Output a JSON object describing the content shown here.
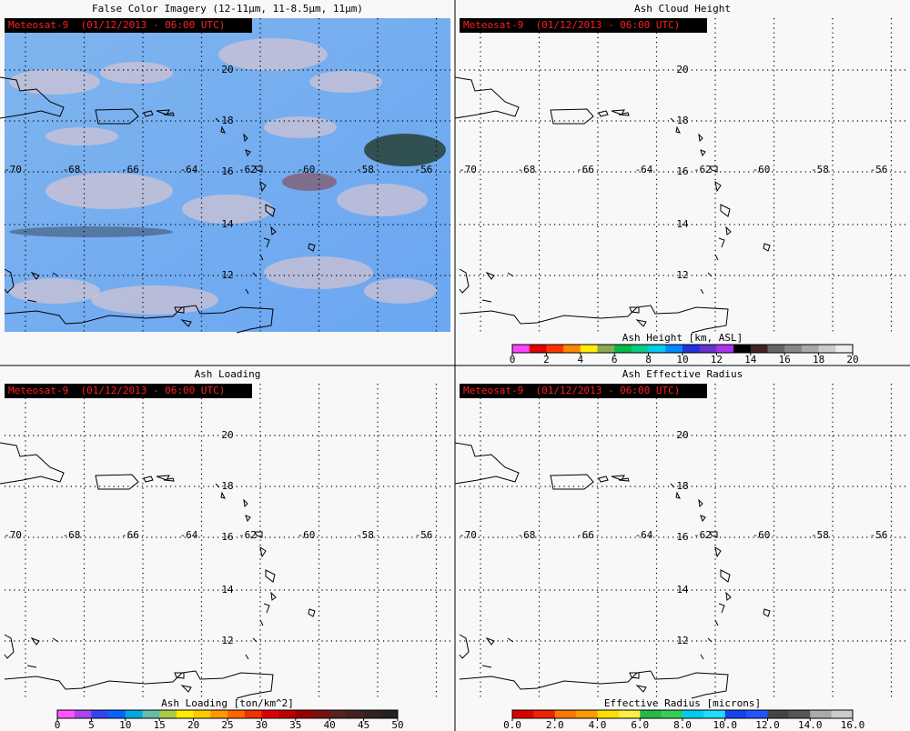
{
  "panels": [
    {
      "title": "False Color Imagery (12-11μm, 11-8.5μm, 11μm)",
      "timestamp": "Meteosat-9  (01/12/2013 - 06:00 UTC)",
      "imagery": true,
      "lat_labels": [
        "20",
        "18",
        "16",
        "14",
        "12"
      ],
      "lon_labels": [
        "-70",
        "-68",
        "-66",
        "-64",
        "-62",
        "-60",
        "-58",
        "-56"
      ]
    },
    {
      "title": "Ash Cloud Height",
      "timestamp": "Meteosat-9  (01/12/2013 - 06:00 UTC)",
      "lat_labels": [
        "20",
        "18",
        "16",
        "14",
        "12"
      ],
      "lon_labels": [
        "-70",
        "-68",
        "-66",
        "-64",
        "-62",
        "-60",
        "-58",
        "-56"
      ],
      "colorbar": {
        "label": "Ash Height [km, ASL]",
        "ticks": [
          "0",
          "2",
          "4",
          "6",
          "8",
          "10",
          "12",
          "14",
          "16",
          "18",
          "20"
        ],
        "colors": [
          "#ff44ff",
          "#e00000",
          "#ff3300",
          "#ff8800",
          "#ffee00",
          "#88aa55",
          "#00bb44",
          "#00cc88",
          "#00ccee",
          "#0088ff",
          "#2233dd",
          "#6633cc",
          "#aa33ee",
          "#000000",
          "#442222",
          "#666666",
          "#888888",
          "#aaaaaa",
          "#cccccc",
          "#eeeeee"
        ]
      }
    },
    {
      "title": "Ash Loading",
      "timestamp": "Meteosat-9  (01/12/2013 - 06:00 UTC)",
      "lat_labels": [
        "20",
        "18",
        "16",
        "14",
        "12"
      ],
      "lon_labels": [
        "-70",
        "-68",
        "-66",
        "-64",
        "-62",
        "-60",
        "-58",
        "-56"
      ],
      "colorbar": {
        "label": "Ash Loading [ton/km^2]",
        "ticks": [
          "0",
          "5",
          "10",
          "15",
          "20",
          "25",
          "30",
          "35",
          "40",
          "45",
          "50"
        ],
        "colors": [
          "#ff55ff",
          "#aa44ee",
          "#3344ee",
          "#0066ff",
          "#00aadd",
          "#66bbaa",
          "#aacc44",
          "#ffee00",
          "#ffcc00",
          "#ff9900",
          "#ff6600",
          "#ee3300",
          "#dd0000",
          "#bb0000",
          "#990000",
          "#771111",
          "#552222",
          "#442222",
          "#332222",
          "#222222"
        ]
      }
    },
    {
      "title": "Ash Effective Radius",
      "timestamp": "Meteosat-9  (01/12/2013 - 06:00 UTC)",
      "lat_labels": [
        "20",
        "18",
        "16",
        "14",
        "12"
      ],
      "lon_labels": [
        "-70",
        "-68",
        "-66",
        "-64",
        "-62",
        "-60",
        "-58",
        "-56"
      ],
      "colorbar": {
        "label": "Effective Radius [microns]",
        "ticks": [
          "0.0",
          "2.0",
          "4.0",
          "6.0",
          "8.0",
          "10.0",
          "12.0",
          "14.0",
          "16.0"
        ],
        "colors": [
          "#dd0000",
          "#ee2200",
          "#ff7700",
          "#ff9900",
          "#ffdd00",
          "#ffee44",
          "#22bb44",
          "#33cc55",
          "#00ccee",
          "#22ddff",
          "#1144ee",
          "#2255ff",
          "#444444",
          "#555555",
          "#aaaaaa",
          "#cccccc"
        ]
      }
    }
  ]
}
